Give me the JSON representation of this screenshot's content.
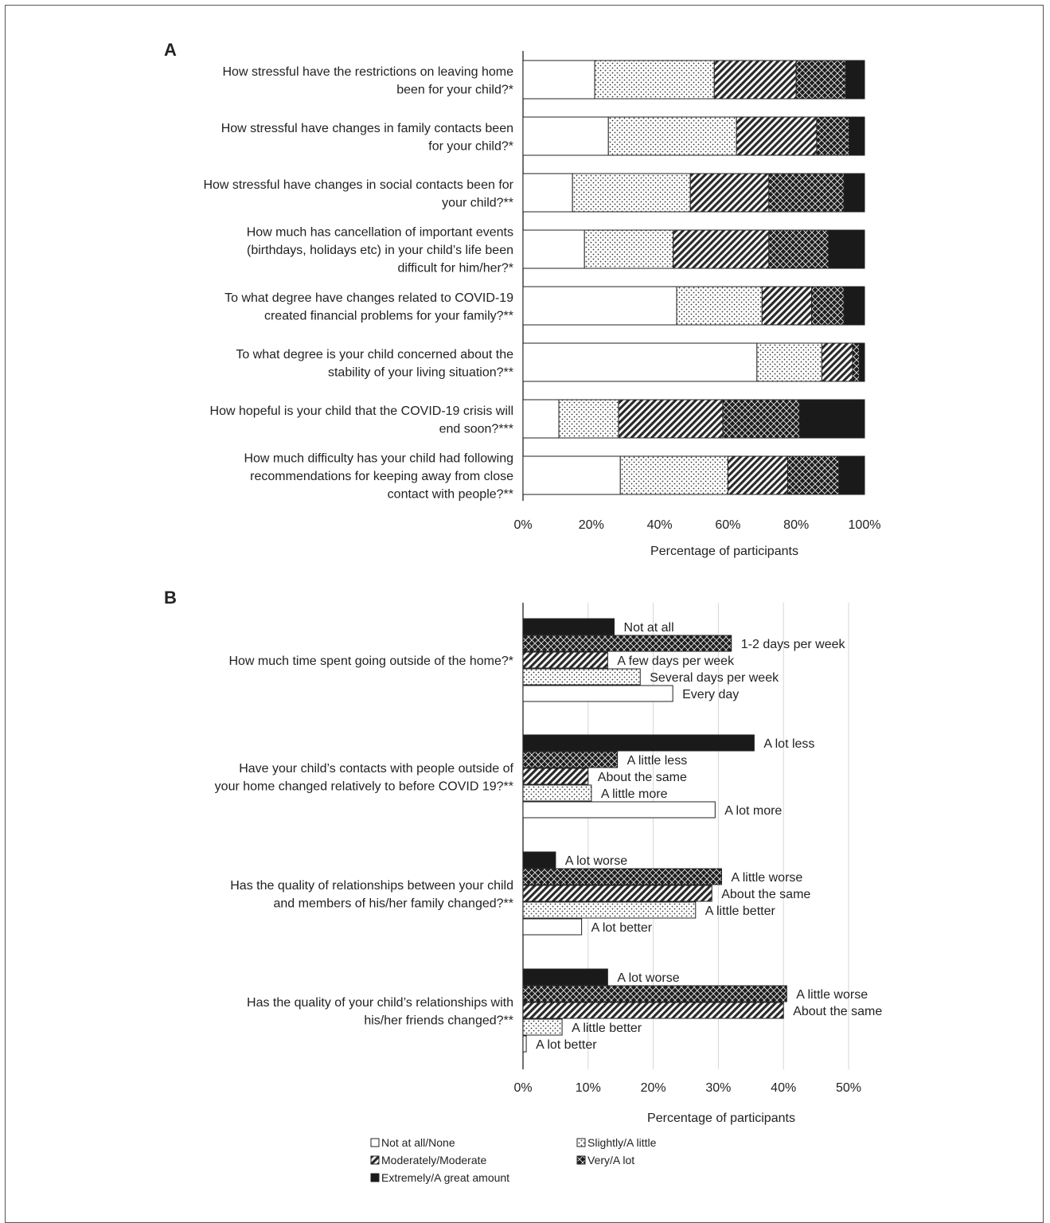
{
  "legend": [
    {
      "label": "Not at all/None",
      "pattern": "none"
    },
    {
      "label": "Slightly/A little",
      "pattern": "dots"
    },
    {
      "label": "Moderately/Moderate",
      "pattern": "hatch"
    },
    {
      "label": "Very/A lot",
      "pattern": "check"
    },
    {
      "label": "Extremely/A great amount",
      "pattern": "solid"
    }
  ],
  "chart_data": [
    {
      "panel": "A",
      "type": "bar",
      "orientation": "horizontal",
      "stacked": "percent",
      "xlabel": "Percentage of participants",
      "xlim": [
        0,
        100
      ],
      "xticks": [
        "0%",
        "20%",
        "40%",
        "60%",
        "80%",
        "100%"
      ],
      "categories": [
        [
          "How stressful have the restrictions on leaving home",
          "been for your child?*"
        ],
        [
          "How stressful have changes in family contacts been",
          "for your child?*"
        ],
        [
          "How stressful have changes in social contacts been for",
          "your child?**"
        ],
        [
          "How much has cancellation of important events",
          "(birthdays, holidays etc) in your child’s life been",
          "difficult for him/her?*"
        ],
        [
          "To what degree have changes related to COVID-19",
          "created financial problems for your family?**"
        ],
        [
          "To what degree is your child concerned about the",
          "stability of your living situation?**"
        ],
        [
          "How hopeful is your child that the COVID-19 crisis will",
          "end soon?***"
        ],
        [
          "How much difficulty has your child had following",
          "recommendations for keeping away from close",
          "contact with people?**"
        ]
      ],
      "series": [
        {
          "name": "Not at all/None",
          "values": [
            21,
            25,
            14.5,
            18,
            45,
            68.5,
            10.5,
            28.5
          ]
        },
        {
          "name": "Slightly/A little",
          "values": [
            35,
            37.5,
            34.5,
            26,
            25,
            19,
            17.5,
            31.5
          ]
        },
        {
          "name": "Moderately/Moderate",
          "values": [
            24,
            23.5,
            23,
            28,
            14.5,
            9,
            30.5,
            17.5
          ]
        },
        {
          "name": "Very/A lot",
          "values": [
            14.5,
            9.5,
            22,
            17.5,
            9.5,
            2,
            22.5,
            15
          ]
        },
        {
          "name": "Extremely/A great amount",
          "values": [
            5.5,
            4.5,
            6,
            10.5,
            6,
            1.5,
            19,
            7.5
          ]
        }
      ]
    },
    {
      "panel": "B",
      "type": "bar",
      "orientation": "horizontal",
      "xlabel": "Percentage of participants",
      "xlim": [
        0,
        50
      ],
      "xticks": [
        "0%",
        "10%",
        "20%",
        "30%",
        "40%",
        "50%"
      ],
      "groups": [
        {
          "question": [
            "How much time spent going outside of the home?*"
          ],
          "bars": [
            {
              "label": "Not at all",
              "value": 14,
              "pattern": "solid"
            },
            {
              "label": "1-2 days per week",
              "value": 32,
              "pattern": "check"
            },
            {
              "label": "A few days per week",
              "value": 13,
              "pattern": "hatch"
            },
            {
              "label": "Several days per week",
              "value": 18,
              "pattern": "dots"
            },
            {
              "label": "Every day",
              "value": 23,
              "pattern": "none"
            }
          ]
        },
        {
          "question": [
            "Have your child’s contacts with people outside of",
            "your home changed relatively to before COVID 19?**"
          ],
          "bars": [
            {
              "label": "A lot less",
              "value": 35.5,
              "pattern": "solid"
            },
            {
              "label": "A little less",
              "value": 14.5,
              "pattern": "check"
            },
            {
              "label": "About the same",
              "value": 10,
              "pattern": "hatch"
            },
            {
              "label": "A little more",
              "value": 10.5,
              "pattern": "dots"
            },
            {
              "label": "A lot more",
              "value": 29.5,
              "pattern": "none"
            }
          ]
        },
        {
          "question": [
            "Has the quality of relationships between your child",
            "and members of his/her family changed?**"
          ],
          "bars": [
            {
              "label": "A lot worse",
              "value": 5,
              "pattern": "solid"
            },
            {
              "label": "A little worse",
              "value": 30.5,
              "pattern": "check"
            },
            {
              "label": "About the same",
              "value": 29,
              "pattern": "hatch"
            },
            {
              "label": "A little better",
              "value": 26.5,
              "pattern": "dots"
            },
            {
              "label": "A lot better",
              "value": 9,
              "pattern": "none"
            }
          ]
        },
        {
          "question": [
            "Has the quality of your child’s relationships with",
            "his/her friends changed?**"
          ],
          "bars": [
            {
              "label": "A lot worse",
              "value": 13,
              "pattern": "solid"
            },
            {
              "label": "A little worse",
              "value": 40.5,
              "pattern": "check"
            },
            {
              "label": "About the same",
              "value": 40,
              "pattern": "hatch"
            },
            {
              "label": "A little better",
              "value": 6,
              "pattern": "dots"
            },
            {
              "label": "A lot better",
              "value": 0.5,
              "pattern": "none"
            }
          ]
        }
      ]
    }
  ]
}
